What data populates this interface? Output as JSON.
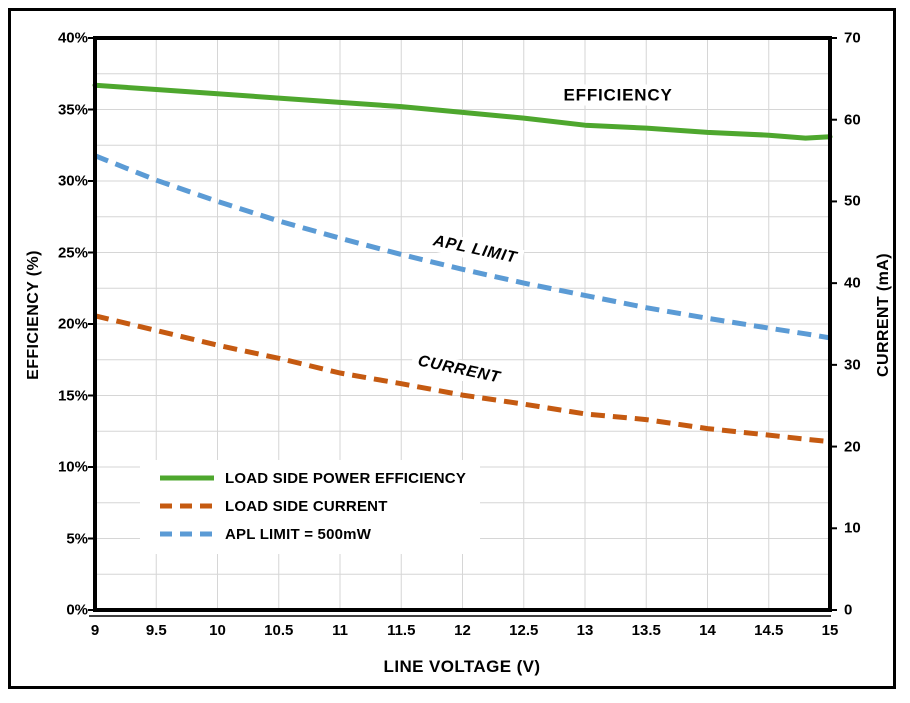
{
  "chart_data": {
    "type": "line",
    "title": "",
    "x_axis": {
      "label": "LINE VOLTAGE (V)",
      "min": 9,
      "max": 15,
      "tick_labels": [
        "9",
        "9.5",
        "10",
        "10.5",
        "11",
        "11.5",
        "12",
        "12.5",
        "13",
        "13.5",
        "14",
        "14.5",
        "15"
      ],
      "tick_values": [
        9,
        9.5,
        10,
        10.5,
        11,
        11.5,
        12,
        12.5,
        13,
        13.5,
        14,
        14.5,
        15
      ]
    },
    "y_left_axis": {
      "label": "EFFICIENCY (%)",
      "min": 0,
      "max": 40,
      "tick_labels": [
        "0%",
        "5%",
        "10%",
        "15%",
        "20%",
        "25%",
        "30%",
        "35%",
        "40%"
      ],
      "tick_values": [
        0,
        5,
        10,
        15,
        20,
        25,
        30,
        35,
        40
      ],
      "gridline_step": 2.5
    },
    "y_right_axis": {
      "label": "CURRENT (mA)",
      "min": 0,
      "max": 70,
      "tick_labels": [
        "0",
        "10",
        "20",
        "30",
        "40",
        "50",
        "60",
        "70"
      ],
      "tick_values": [
        0,
        10,
        20,
        30,
        40,
        50,
        60,
        70
      ]
    },
    "grid": {
      "color": "#D6D6D6",
      "axis_color": "#000000"
    },
    "x": [
      9,
      9.5,
      10,
      10.5,
      11,
      11.5,
      12,
      12.5,
      13,
      13.5,
      14,
      14.5,
      14.8,
      15
    ],
    "series": [
      {
        "name": "LOAD SIDE POWER EFFICIENCY",
        "axis": "left",
        "color": "#4EA72E",
        "style": "solid",
        "values": [
          36.7,
          36.4,
          36.1,
          35.8,
          35.5,
          35.2,
          34.8,
          34.4,
          33.9,
          33.7,
          33.4,
          33.2,
          33.0,
          33.1
        ]
      },
      {
        "name": "LOAD SIDE CURRENT",
        "axis": "right",
        "color": "#C55A11",
        "style": "dashed",
        "values": [
          36.0,
          34.2,
          32.4,
          30.8,
          29.0,
          27.7,
          26.3,
          25.2,
          24.0,
          23.3,
          22.2,
          21.4,
          20.9,
          20.6
        ]
      },
      {
        "name": "APL LIMIT = 500mW",
        "axis": "right",
        "color": "#5B9BD5",
        "style": "dashed",
        "values": [
          55.6,
          52.6,
          50.0,
          47.6,
          45.5,
          43.5,
          41.7,
          40.0,
          38.5,
          37.0,
          35.7,
          34.5,
          33.8,
          33.3
        ]
      }
    ],
    "annotations": [
      {
        "text": "EFFICIENCY",
        "x_volt": 13.27,
        "y_pct": 36.0,
        "rotate_deg": 0,
        "italic": false
      },
      {
        "text": "APL LIMIT",
        "x_volt": 12.1,
        "y_pct": 25.2,
        "rotate_deg": 12,
        "italic": true
      },
      {
        "text": "CURRENT",
        "x_volt": 11.97,
        "y_pct": 16.8,
        "rotate_deg": 12,
        "italic": true
      }
    ],
    "legend_position": "inside-bottom-left"
  }
}
